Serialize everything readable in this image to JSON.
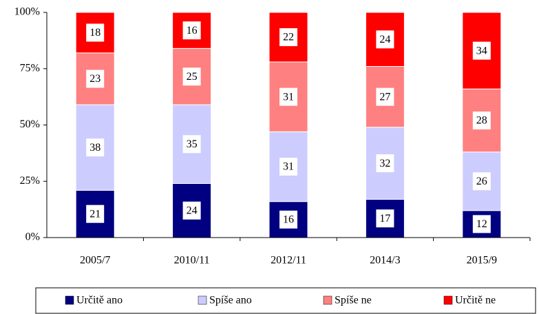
{
  "chart_data": {
    "type": "stacked_bar",
    "categories": [
      "2005/7",
      "2010/11",
      "2012/11",
      "2014/3",
      "2015/9"
    ],
    "series": [
      {
        "name": "Určitě ano",
        "color": "#000080",
        "values": [
          21,
          24,
          16,
          17,
          12
        ]
      },
      {
        "name": "Spíše ano",
        "color": "#ccccff",
        "values": [
          38,
          35,
          31,
          32,
          26
        ]
      },
      {
        "name": "Spíše ne",
        "color": "#ff8080",
        "values": [
          23,
          25,
          31,
          27,
          28
        ]
      },
      {
        "name": "Určitě ne",
        "color": "#ff0000",
        "values": [
          18,
          16,
          22,
          24,
          34
        ]
      }
    ],
    "ylim": [
      0,
      100
    ],
    "yticks": [
      {
        "value": 0,
        "label": "0%"
      },
      {
        "value": 25,
        "label": "25%"
      },
      {
        "value": 50,
        "label": "50%"
      },
      {
        "value": 75,
        "label": "75%"
      },
      {
        "value": 100,
        "label": "100%"
      }
    ],
    "grid": false
  }
}
